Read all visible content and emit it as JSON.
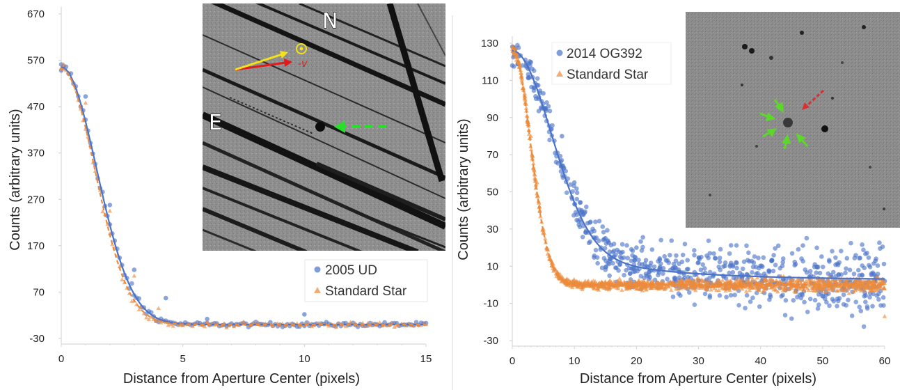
{
  "colors": {
    "blue": "#4a73c8",
    "orange": "#ec8a3c",
    "axis": "#cfcfcf",
    "inset_bg": "#8f8f8f"
  },
  "chart_data": [
    {
      "type": "scatter",
      "xlabel": "Distance from Aperture Center (pixels)",
      "ylabel": "Counts (arbitrary units)",
      "xlim": [
        0,
        15
      ],
      "ylim": [
        -30,
        670
      ],
      "xticks": [
        "0",
        "5",
        "10",
        "15"
      ],
      "yticks": [
        "670",
        "570",
        "470",
        "370",
        "270",
        "170",
        "70",
        "-30"
      ],
      "legend_position": "bottom-right",
      "series": [
        {
          "name": "2005 UD",
          "marker": "circle",
          "color": "#4a73c8",
          "fit": {
            "style": "solid",
            "amplitude": 555,
            "sigma": 1.45,
            "baseline": 0
          },
          "points_sample": [
            [
              0,
              548
            ],
            [
              1.0,
              492
            ],
            [
              2.0,
              258
            ],
            [
              3.0,
              118
            ],
            [
              4.3,
              57
            ],
            [
              6.0,
              12
            ],
            [
              10.0,
              22
            ],
            [
              15.0,
              3
            ]
          ]
        },
        {
          "name": "Standard Star",
          "marker": "triangle",
          "color": "#ec8a3c",
          "fit": {
            "style": "dashed",
            "amplitude": 552,
            "sigma": 1.38,
            "baseline": 0
          },
          "points_sample": [
            [
              0,
              552
            ],
            [
              1.0,
              478
            ],
            [
              2.0,
              245
            ],
            [
              3.0,
              105
            ],
            [
              4.0,
              35
            ],
            [
              6.0,
              5
            ],
            [
              10.0,
              -2
            ],
            [
              15.0,
              0
            ]
          ]
        }
      ],
      "inset_labels": {
        "north": "N",
        "east": "E",
        "velocity": "-v",
        "sun": "−⊙"
      }
    },
    {
      "type": "scatter",
      "xlabel": "Distance from Aperture Center (pixels)",
      "ylabel": "Counts (arbitrary units)",
      "xlim": [
        0,
        60
      ],
      "ylim": [
        -30,
        130
      ],
      "xticks": [
        "0",
        "10",
        "20",
        "30",
        "40",
        "50",
        "60"
      ],
      "yticks": [
        "130",
        "110",
        "90",
        "70",
        "50",
        "30",
        "10",
        "-10",
        "-30"
      ],
      "legend_position": "top-left",
      "series": [
        {
          "name": "2014 OG392",
          "marker": "circle",
          "color": "#4a73c8",
          "fit": {
            "style": "solid",
            "amplitude": 124,
            "core_sigma": 6.2,
            "halo_amplitude": 22,
            "halo_scale": 14,
            "baseline": 2
          },
          "points_sample": [
            [
              0,
              118
            ],
            [
              3,
              131
            ],
            [
              5,
              103
            ],
            [
              8,
              80
            ],
            [
              10,
              55
            ],
            [
              15,
              25
            ],
            [
              20,
              20
            ],
            [
              30,
              12
            ],
            [
              40,
              5
            ],
            [
              50,
              3
            ],
            [
              60,
              2
            ]
          ]
        },
        {
          "name": "Standard Star",
          "marker": "triangle",
          "color": "#ec8a3c",
          "fit": {
            "style": "dashed",
            "amplitude": 127,
            "sigma": 2.9,
            "baseline": 0
          },
          "points_sample": [
            [
              0,
              131
            ],
            [
              1,
              120
            ],
            [
              2,
              103
            ],
            [
              3,
              80
            ],
            [
              4,
              55
            ],
            [
              5,
              30
            ],
            [
              7,
              8
            ],
            [
              10,
              2
            ],
            [
              20,
              0
            ],
            [
              40,
              0
            ],
            [
              60,
              -17
            ]
          ]
        }
      ]
    }
  ]
}
